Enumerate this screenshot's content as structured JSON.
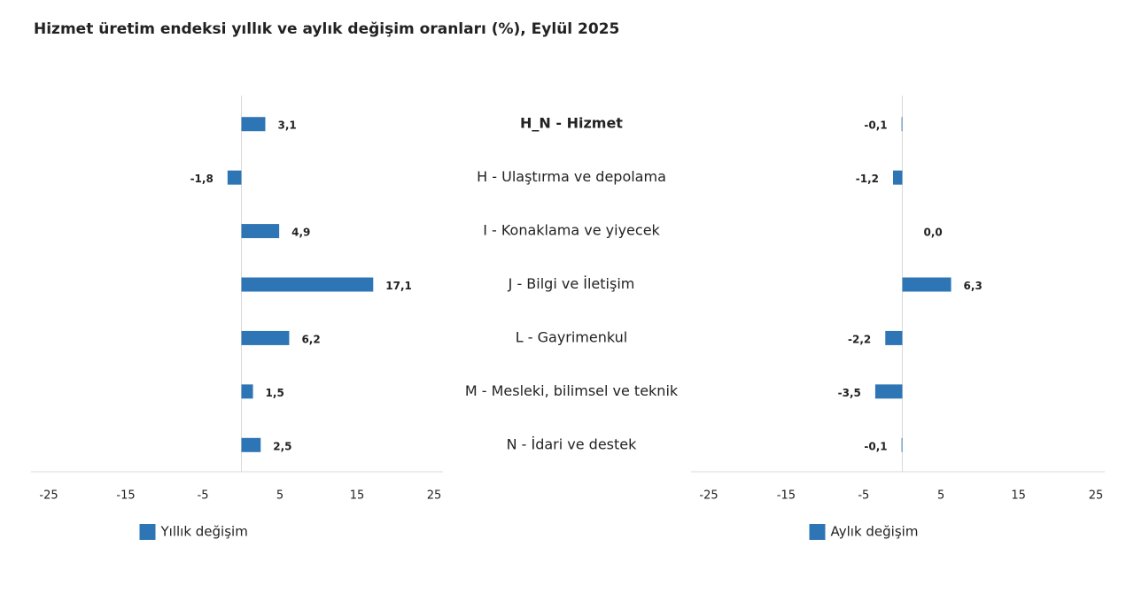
{
  "chart_data": [
    {
      "type": "bar",
      "orientation": "horizontal",
      "title": "Hizmet üretim endeksi yıllık ve aylık değişim oranları (%), Eylül 2025",
      "categories": [
        "H_N - Hizmet",
        "H - Ulaştırma ve depolama",
        "I - Konaklama ve yiyecek",
        "J - Bilgi ve İletişim",
        "L - Gayrimenkul",
        "M - Mesleki, bilimsel ve teknik",
        "N - İdari ve destek"
      ],
      "series": [
        {
          "name": "Yıllık değişim",
          "color": "#2e75b6",
          "values": [
            3.1,
            -1.8,
            4.9,
            17.1,
            6.2,
            1.5,
            2.5
          ],
          "value_labels": [
            "3,1",
            "-1,8",
            "4,9",
            "17,1",
            "6,2",
            "1,5",
            "2,5"
          ]
        }
      ],
      "xlim": [
        -25,
        25
      ],
      "xticks": [
        -25,
        -15,
        -5,
        5,
        15,
        25
      ]
    },
    {
      "type": "bar",
      "orientation": "horizontal",
      "series": [
        {
          "name": "Aylık değişim",
          "color": "#2e75b6",
          "values": [
            -0.1,
            -1.2,
            0.0,
            6.3,
            -2.2,
            -3.5,
            -0.1
          ],
          "value_labels": [
            "-0,1",
            "-1,2",
            "0,0",
            "6,3",
            "-2,2",
            "-3,5",
            "-0,1"
          ]
        }
      ],
      "xlim": [
        -25,
        25
      ],
      "xticks": [
        -25,
        -15,
        -5,
        5,
        15,
        25
      ]
    }
  ]
}
